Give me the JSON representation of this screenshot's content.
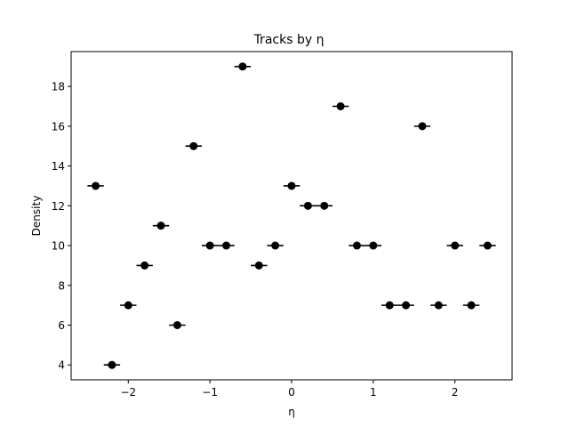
{
  "chart_data": {
    "type": "scatter",
    "title": "Tracks by η",
    "xlabel": "η",
    "ylabel": "Density",
    "xlim": [
      -2.7,
      2.7
    ],
    "ylim": [
      3.25,
      19.75
    ],
    "xticks": [
      -2,
      -1,
      0,
      1,
      2
    ],
    "xtick_labels": [
      "−2",
      "−1",
      "0",
      "1",
      "2"
    ],
    "yticks": [
      4,
      6,
      8,
      10,
      12,
      14,
      16,
      18
    ],
    "ytick_labels": [
      "4",
      "6",
      "8",
      "10",
      "12",
      "14",
      "16",
      "18"
    ],
    "grid": false,
    "x_error": 0.1,
    "marker_color": "#000000",
    "points": [
      {
        "x": -2.4,
        "y": 13
      },
      {
        "x": -2.2,
        "y": 4
      },
      {
        "x": -2.0,
        "y": 7
      },
      {
        "x": -1.8,
        "y": 9
      },
      {
        "x": -1.6,
        "y": 11
      },
      {
        "x": -1.4,
        "y": 6
      },
      {
        "x": -1.2,
        "y": 15
      },
      {
        "x": -1.0,
        "y": 10
      },
      {
        "x": -0.8,
        "y": 10
      },
      {
        "x": -0.6,
        "y": 19
      },
      {
        "x": -0.4,
        "y": 9
      },
      {
        "x": -0.2,
        "y": 10
      },
      {
        "x": 0.0,
        "y": 13
      },
      {
        "x": 0.2,
        "y": 12
      },
      {
        "x": 0.4,
        "y": 12
      },
      {
        "x": 0.6,
        "y": 17
      },
      {
        "x": 0.8,
        "y": 10
      },
      {
        "x": 1.0,
        "y": 10
      },
      {
        "x": 1.2,
        "y": 7
      },
      {
        "x": 1.4,
        "y": 7
      },
      {
        "x": 1.6,
        "y": 16
      },
      {
        "x": 1.8,
        "y": 7
      },
      {
        "x": 2.0,
        "y": 10
      },
      {
        "x": 2.2,
        "y": 7
      },
      {
        "x": 2.4,
        "y": 10
      }
    ]
  }
}
